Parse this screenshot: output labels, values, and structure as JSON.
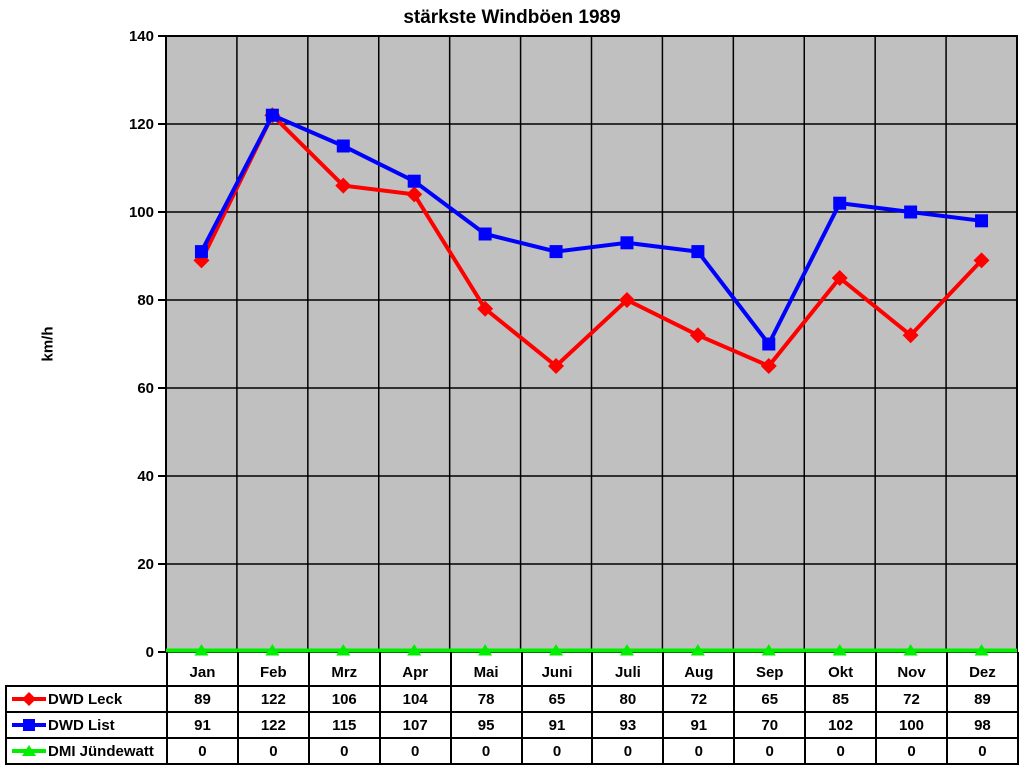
{
  "chart_data": {
    "type": "line",
    "title": "stärkste Windböen 1989",
    "xlabel": "",
    "ylabel": "km/h",
    "ylim": [
      0,
      140
    ],
    "yticks": [
      0,
      20,
      40,
      60,
      80,
      100,
      120,
      140
    ],
    "grid": true,
    "plot_bg": "#c0c0c0",
    "grid_color": "#000000",
    "legend_position": "table-left",
    "categories": [
      "Jan",
      "Feb",
      "Mrz",
      "Apr",
      "Mai",
      "Juni",
      "Juli",
      "Aug",
      "Sep",
      "Okt",
      "Nov",
      "Dez"
    ],
    "series": [
      {
        "name": "DWD Leck",
        "color": "#ff0000",
        "marker": "diamond",
        "values": [
          89,
          122,
          106,
          104,
          78,
          65,
          80,
          72,
          65,
          85,
          72,
          89
        ]
      },
      {
        "name": "DWD List",
        "color": "#0000ff",
        "marker": "square",
        "values": [
          91,
          122,
          115,
          107,
          95,
          91,
          93,
          91,
          70,
          102,
          100,
          98
        ]
      },
      {
        "name": "DMI Jündewatt",
        "color": "#00ee00",
        "marker": "triangle",
        "values": [
          0,
          0,
          0,
          0,
          0,
          0,
          0,
          0,
          0,
          0,
          0,
          0
        ]
      }
    ]
  }
}
